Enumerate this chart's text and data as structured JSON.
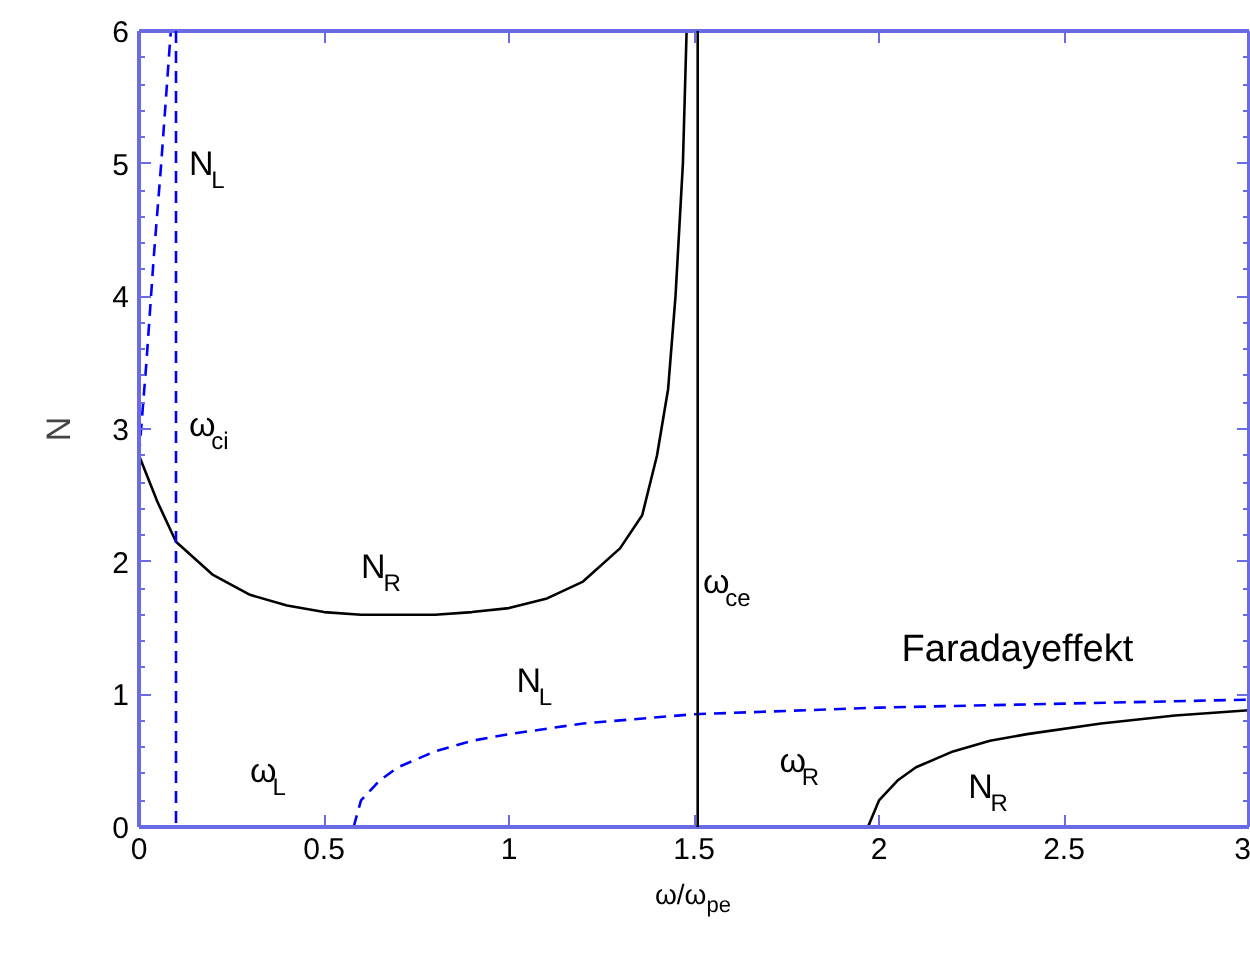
{
  "chart_data": {
    "type": "line",
    "xlabel": "ω/ω$_{pe}$",
    "ylabel": "N",
    "xlim": [
      0,
      3
    ],
    "ylim": [
      0,
      6
    ],
    "xticks": [
      0,
      0.5,
      1,
      1.5,
      2,
      2.5,
      3
    ],
    "yticks": [
      0,
      1,
      2,
      3,
      4,
      5,
      6
    ],
    "tick_labels": "xy",
    "grid": false,
    "series": [
      {
        "color": "#000000",
        "line_style": "solid",
        "x": [
          0,
          0.05,
          0.1,
          0.2,
          0.3,
          0.4,
          0.5,
          0.6,
          0.7,
          0.8,
          0.9,
          1.0,
          1.1,
          1.2,
          1.3,
          1.36,
          1.4,
          1.43,
          1.45,
          1.47,
          1.48
        ],
        "values": [
          2.8,
          2.45,
          2.15,
          1.9,
          1.75,
          1.67,
          1.62,
          1.6,
          1.6,
          1.6,
          1.62,
          1.65,
          1.72,
          1.85,
          2.1,
          2.35,
          2.8,
          3.3,
          4.0,
          5.0,
          6.0
        ]
      },
      {
        "color": "#000000",
        "line_style": "solid",
        "x": [
          1.97,
          2.0,
          2.05,
          2.1,
          2.2,
          2.3,
          2.4,
          2.6,
          2.8,
          3.0
        ],
        "values": [
          0,
          0.2,
          0.35,
          0.45,
          0.57,
          0.65,
          0.7,
          0.78,
          0.84,
          0.88
        ]
      },
      {
        "color": "#0000ff",
        "line_style": "dashed",
        "x": [
          0,
          0.02,
          0.04,
          0.06,
          0.086
        ],
        "values": [
          2.8,
          3.5,
          4.3,
          5.0,
          6.0
        ]
      },
      {
        "color": "#0000ff",
        "line_style": "dashed",
        "x": [
          0.58,
          0.6,
          0.65,
          0.7,
          0.8,
          0.9,
          1.0,
          1.2,
          1.5,
          2.0,
          2.5,
          3.0
        ],
        "values": [
          0,
          0.2,
          0.35,
          0.45,
          0.57,
          0.65,
          0.7,
          0.78,
          0.85,
          0.9,
          0.93,
          0.96
        ]
      }
    ],
    "ref_lines": [
      {
        "axis": "x",
        "value": 0.1,
        "color": "#0000ff",
        "line_style": "dashed"
      },
      {
        "axis": "x",
        "value": 1.51,
        "color": "#000000",
        "line_style": "solid"
      }
    ],
    "annotations": [
      "N$_{L}$",
      "ω$_{ci}$",
      "N$_{R}$",
      "N$_{L}$",
      "ω$_{ce}$",
      "Faradayeffekt",
      "ω$_{L}$",
      "ω$_{R}$",
      "N$_{R}$"
    ]
  }
}
